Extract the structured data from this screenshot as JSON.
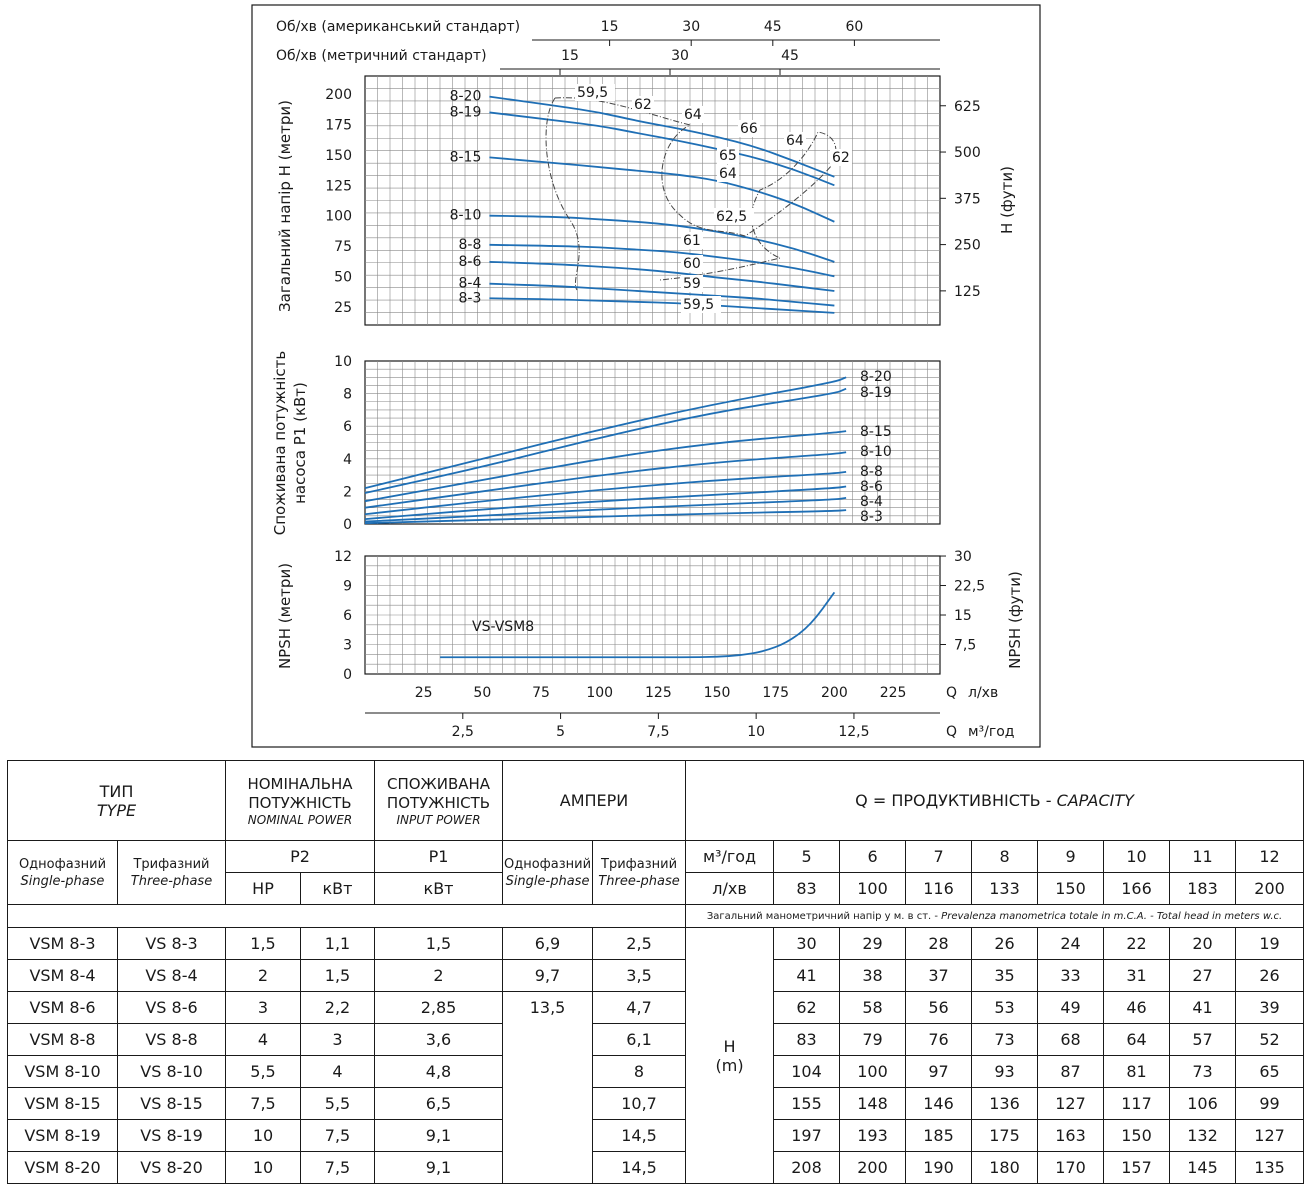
{
  "rpm": {
    "american_label": "Об/хв (американський стандарт)",
    "american_ticks": [
      "15",
      "30",
      "45",
      "60"
    ],
    "metric_label": "Об/хв (метричний стандарт)",
    "metric_ticks": [
      "15",
      "30",
      "45"
    ]
  },
  "x_axis": {
    "flow_ticks": [
      "25",
      "50",
      "75",
      "100",
      "125",
      "150",
      "175",
      "200",
      "225"
    ],
    "flow_unit_q": "Q",
    "flow_unit": "л/хв",
    "m3_ticks": [
      "2,5",
      "5",
      "7,5",
      "10",
      "12,5"
    ],
    "m3_unit_q": "Q",
    "m3_unit": "м³/год"
  },
  "chart_data": [
    {
      "type": "line",
      "ylabel": "Загальний напір H (метри)",
      "ylabel_right": "H (фути)",
      "ylim": [
        10,
        215
      ],
      "y_ticks": [
        "25",
        "50",
        "75",
        "100",
        "125",
        "150",
        "175",
        "200"
      ],
      "y_right_ticks": [
        "625",
        "500",
        "375",
        "250",
        "125"
      ],
      "xlim": [
        0,
        245
      ],
      "series": [
        {
          "name": "8-20",
          "x": [
            53,
            83,
            100,
            116,
            133,
            150,
            166,
            183,
            200
          ],
          "y": [
            198,
            190,
            185,
            178,
            172,
            165,
            157,
            145,
            132
          ]
        },
        {
          "name": "8-19",
          "x": [
            53,
            83,
            100,
            116,
            133,
            150,
            166,
            183,
            200
          ],
          "y": [
            185,
            178,
            174,
            168,
            162,
            155,
            148,
            138,
            125
          ]
        },
        {
          "name": "8-15",
          "x": [
            53,
            83,
            100,
            116,
            133,
            150,
            166,
            183,
            200
          ],
          "y": [
            148,
            143,
            140,
            137,
            134,
            129,
            121,
            110,
            95
          ]
        },
        {
          "name": "8-10",
          "x": [
            53,
            83,
            100,
            116,
            133,
            150,
            166,
            183,
            200
          ],
          "y": [
            100,
            99,
            97,
            95,
            92,
            87,
            81,
            73,
            62
          ]
        },
        {
          "name": "8-8",
          "x": [
            53,
            83,
            100,
            116,
            133,
            150,
            166,
            183,
            200
          ],
          "y": [
            76,
            75,
            74,
            72,
            70,
            66,
            62,
            57,
            50
          ]
        },
        {
          "name": "8-6",
          "x": [
            53,
            83,
            100,
            116,
            133,
            150,
            166,
            183,
            200
          ],
          "y": [
            62,
            60,
            58,
            56,
            53,
            49,
            46,
            42,
            38
          ]
        },
        {
          "name": "8-4",
          "x": [
            53,
            83,
            100,
            116,
            133,
            150,
            166,
            183,
            200
          ],
          "y": [
            44,
            42,
            40,
            38,
            36,
            34,
            32,
            29,
            26
          ]
        },
        {
          "name": "8-3",
          "x": [
            53,
            83,
            100,
            116,
            133,
            150,
            166,
            183,
            200
          ],
          "y": [
            32,
            31,
            30,
            29,
            28,
            26,
            24,
            22,
            20
          ]
        }
      ],
      "series_labels": [
        "8-20",
        "8-19",
        "8-15",
        "8-10",
        "8-8",
        "8-6",
        "8-4",
        "8-3"
      ],
      "efficiency_labels": [
        "59,5",
        "62",
        "64",
        "66",
        "64",
        "62",
        "65",
        "64",
        "62,5",
        "61",
        "60",
        "59",
        "59,5"
      ],
      "grid": true
    },
    {
      "type": "line",
      "ylabel": "Споживана потужність насоса P1 (кВт)",
      "ylim": [
        0,
        10
      ],
      "y_ticks": [
        "0",
        "2",
        "4",
        "6",
        "8",
        "10"
      ],
      "xlim": [
        0,
        245
      ],
      "series": [
        {
          "name": "8-20",
          "x": [
            0,
            50,
            100,
            150,
            200,
            205
          ],
          "y": [
            2.2,
            4.0,
            5.8,
            7.4,
            8.7,
            9.0
          ]
        },
        {
          "name": "8-19",
          "x": [
            0,
            50,
            100,
            150,
            200,
            205
          ],
          "y": [
            1.9,
            3.5,
            5.3,
            6.9,
            8.0,
            8.3
          ]
        },
        {
          "name": "8-15",
          "x": [
            0,
            50,
            100,
            150,
            200,
            205
          ],
          "y": [
            1.4,
            2.7,
            4.0,
            5.0,
            5.6,
            5.7
          ]
        },
        {
          "name": "8-10",
          "x": [
            0,
            50,
            100,
            150,
            200,
            205
          ],
          "y": [
            1.0,
            2.0,
            3.0,
            3.8,
            4.3,
            4.4
          ]
        },
        {
          "name": "8-8",
          "x": [
            0,
            50,
            100,
            150,
            200,
            205
          ],
          "y": [
            0.6,
            1.4,
            2.1,
            2.7,
            3.1,
            3.2
          ]
        },
        {
          "name": "8-6",
          "x": [
            0,
            50,
            100,
            150,
            200,
            205
          ],
          "y": [
            0.3,
            0.9,
            1.4,
            1.8,
            2.2,
            2.3
          ]
        },
        {
          "name": "8-4",
          "x": [
            0,
            50,
            100,
            150,
            200,
            205
          ],
          "y": [
            0.15,
            0.5,
            0.9,
            1.2,
            1.5,
            1.6
          ]
        },
        {
          "name": "8-3",
          "x": [
            0,
            50,
            100,
            150,
            200,
            205
          ],
          "y": [
            0.05,
            0.25,
            0.45,
            0.65,
            0.8,
            0.85
          ]
        }
      ],
      "series_labels": [
        "8-20",
        "8-19",
        "8-15",
        "8-10",
        "8-8",
        "8-6",
        "8-4",
        "8-3"
      ],
      "grid": true
    },
    {
      "type": "line",
      "ylabel": "NPSH (метри)",
      "ylabel_right": "NPSH (фути)",
      "ylim": [
        0,
        12
      ],
      "y_ticks": [
        "0",
        "3",
        "6",
        "9",
        "12"
      ],
      "y_right_ticks": [
        "7,5",
        "15",
        "22,5",
        "30"
      ],
      "xlim": [
        0,
        245
      ],
      "series": [
        {
          "name": "VS-VSM8",
          "x": [
            32,
            60,
            100,
            140,
            150,
            160,
            170,
            180,
            190,
            200
          ],
          "y": [
            1.7,
            1.7,
            1.7,
            1.7,
            1.75,
            1.9,
            2.3,
            3.2,
            5.0,
            8.3
          ]
        }
      ],
      "series_label": "VS-VSM8",
      "grid": true
    }
  ],
  "table": {
    "h_type": "ТИП",
    "h_type_en": "TYPE",
    "h_nominal": "НОМІНАЛЬНА ПОТУЖНІСТЬ",
    "h_nominal_en": "NOMINAL POWER",
    "h_input": "СПОЖИВАНА ПОТУЖНІСТЬ",
    "h_input_en": "INPUT POWER",
    "h_amps": "АМПЕРИ",
    "h_capacity": "Q = ПРОДУКТИВНІСТЬ - ",
    "h_capacity_en": "CAPACITY",
    "single": "Однофазний",
    "single_en": "Single-phase",
    "three": "Трифазний",
    "three_en": "Three-phase",
    "p2": "P2",
    "p1": "P1",
    "hp": "HP",
    "kw": "кВт",
    "kw_p1": "кВт",
    "amps_single": "Однофазний",
    "amps_single_en": "Single-phase",
    "amps_three": "Трифазний",
    "amps_three_en": "Three-phase",
    "m3h_label": "м³/год",
    "lmin_label": "л/хв",
    "m3h": [
      "5",
      "6",
      "7",
      "8",
      "9",
      "10",
      "11",
      "12"
    ],
    "lmin": [
      "83",
      "100",
      "116",
      "133",
      "150",
      "166",
      "183",
      "200"
    ],
    "head_note": "Загальний манометричний напір у м. в ст. - ",
    "head_note_it": "Prevalenza manometrica totale in m.C.A. - Total head in meters w.c.",
    "h_label": "H",
    "m_label": "(m)",
    "rows": [
      {
        "single": "VSM 8-3",
        "three": "VS 8-3",
        "hp": "1,5",
        "kw": "1,1",
        "p1": "1,5",
        "a1": "6,9",
        "a3": "2,5",
        "h": [
          "30",
          "29",
          "28",
          "26",
          "24",
          "22",
          "20",
          "19"
        ]
      },
      {
        "single": "VSM 8-4",
        "three": "VS 8-4",
        "hp": "2",
        "kw": "1,5",
        "p1": "2",
        "a1": "9,7",
        "a3": "3,5",
        "h": [
          "41",
          "38",
          "37",
          "35",
          "33",
          "31",
          "27",
          "26"
        ]
      },
      {
        "single": "VSM 8-6",
        "three": "VS 8-6",
        "hp": "3",
        "kw": "2,2",
        "p1": "2,85",
        "a1": "13,5",
        "a3": "4,7",
        "h": [
          "62",
          "58",
          "56",
          "53",
          "49",
          "46",
          "41",
          "39"
        ]
      },
      {
        "single": "VSM 8-8",
        "three": "VS 8-8",
        "hp": "4",
        "kw": "3",
        "p1": "3,6",
        "a1": "",
        "a3": "6,1",
        "h": [
          "83",
          "79",
          "76",
          "73",
          "68",
          "64",
          "57",
          "52"
        ]
      },
      {
        "single": "VSM 8-10",
        "three": "VS 8-10",
        "hp": "5,5",
        "kw": "4",
        "p1": "4,8",
        "a1": "",
        "a3": "8",
        "h": [
          "104",
          "100",
          "97",
          "93",
          "87",
          "81",
          "73",
          "65"
        ]
      },
      {
        "single": "VSM 8-15",
        "three": "VS 8-15",
        "hp": "7,5",
        "kw": "5,5",
        "p1": "6,5",
        "a1": "",
        "a3": "10,7",
        "h": [
          "155",
          "148",
          "146",
          "136",
          "127",
          "117",
          "106",
          "99"
        ]
      },
      {
        "single": "VSM 8-19",
        "three": "VS 8-19",
        "hp": "10",
        "kw": "7,5",
        "p1": "9,1",
        "a1": "",
        "a3": "14,5",
        "h": [
          "197",
          "193",
          "185",
          "175",
          "163",
          "150",
          "132",
          "127"
        ]
      },
      {
        "single": "VSM 8-20",
        "three": "VS 8-20",
        "hp": "10",
        "kw": "7,5",
        "p1": "9,1",
        "a1": "",
        "a3": "14,5",
        "h": [
          "208",
          "200",
          "190",
          "180",
          "170",
          "157",
          "145",
          "135"
        ]
      }
    ]
  },
  "colors": {
    "curve": "#1f6fb5",
    "grid": "#777777",
    "frame": "#1a1a1a"
  }
}
